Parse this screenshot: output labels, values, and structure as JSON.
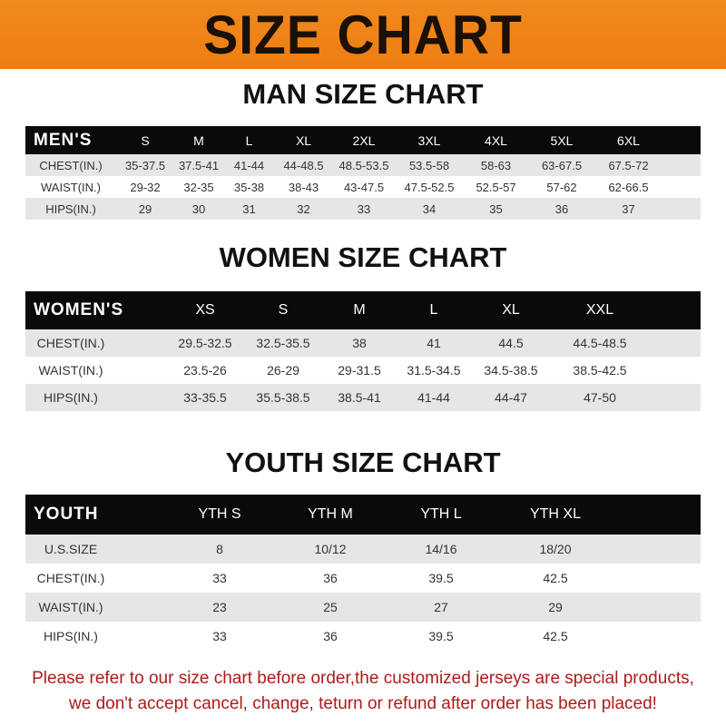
{
  "banner_title": "SIZE CHART",
  "men": {
    "title": "MAN SIZE CHART",
    "header": "MEN'S",
    "sizes": [
      "S",
      "M",
      "L",
      "XL",
      "2XL",
      "3XL",
      "4XL",
      "5XL",
      "6XL"
    ],
    "rows": [
      {
        "label": "CHEST(IN.)",
        "values": [
          "35-37.5",
          "37.5-41",
          "41-44",
          "44-48.5",
          "48.5-53.5",
          "53.5-58",
          "58-63",
          "63-67.5",
          "67.5-72"
        ]
      },
      {
        "label": "WAIST(IN.)",
        "values": [
          "29-32",
          "32-35",
          "35-38",
          "38-43",
          "43-47.5",
          "47.5-52.5",
          "52.5-57",
          "57-62",
          "62-66.5"
        ]
      },
      {
        "label": "HIPS(IN.)",
        "values": [
          "29",
          "30",
          "31",
          "32",
          "33",
          "34",
          "35",
          "36",
          "37"
        ]
      }
    ]
  },
  "women": {
    "title": "WOMEN SIZE CHART",
    "header": "WOMEN'S",
    "sizes": [
      "XS",
      "S",
      "M",
      "L",
      "XL",
      "XXL"
    ],
    "rows": [
      {
        "label": "CHEST(IN.)",
        "values": [
          "29.5-32.5",
          "32.5-35.5",
          "38",
          "41",
          "44.5",
          "44.5-48.5"
        ]
      },
      {
        "label": "WAIST(IN.)",
        "values": [
          "23.5-26",
          "26-29",
          "29-31.5",
          "31.5-34.5",
          "34.5-38.5",
          "38.5-42.5"
        ]
      },
      {
        "label": "HIPS(IN.)",
        "values": [
          "33-35.5",
          "35.5-38.5",
          "38.5-41",
          "41-44",
          "44-47",
          "47-50"
        ]
      }
    ]
  },
  "youth": {
    "title": "YOUTH SIZE CHART",
    "header": "YOUTH",
    "sizes": [
      "YTH S",
      "YTH M",
      "YTH L",
      "YTH XL"
    ],
    "rows": [
      {
        "label": "U.S.SIZE",
        "values": [
          "8",
          "10/12",
          "14/16",
          "18/20"
        ]
      },
      {
        "label": "CHEST(IN.)",
        "values": [
          "33",
          "36",
          "39.5",
          "42.5"
        ]
      },
      {
        "label": "WAIST(IN.)",
        "values": [
          "23",
          "25",
          "27",
          "29"
        ]
      },
      {
        "label": "HIPS(IN.)",
        "values": [
          "33",
          "36",
          "39.5",
          "42.5"
        ]
      }
    ]
  },
  "notice": {
    "line1": "Please refer to our size chart before order,the customized jerseys are special products,",
    "line2": "we don't accept cancel, change, teturn or refund after order has been placed!"
  },
  "colors": {
    "banner": "#ef8418",
    "header_row": "#0b0909",
    "stripe": "#e6e6e6",
    "notice": "#b01a1a"
  }
}
